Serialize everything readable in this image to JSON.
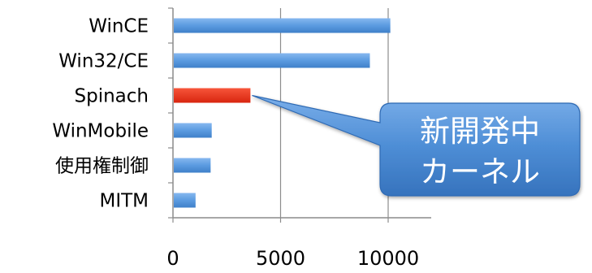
{
  "chart_data": {
    "type": "bar",
    "orientation": "horizontal",
    "categories": [
      "WinCE",
      "Win32/CE",
      "Spinach",
      "WinMobile",
      "使用権制御",
      "MITM"
    ],
    "values": [
      10100,
      9150,
      3600,
      1800,
      1750,
      1050
    ],
    "highlight_category": "Spinach",
    "colors": {
      "bar": "#5b9be0",
      "bar_highlight": "#e8321e",
      "axis": "#8c8c8c",
      "callout": "#4e8ed6"
    },
    "xlim": [
      0,
      12000
    ],
    "xticks": [
      0,
      5000,
      10000
    ],
    "xtick_labels": [
      "0",
      "5000",
      "10000"
    ],
    "grid": true,
    "title": "",
    "xlabel": "",
    "ylabel": "",
    "annotation": {
      "target": "Spinach",
      "lines": [
        "新開発中",
        "カーネル"
      ]
    }
  }
}
